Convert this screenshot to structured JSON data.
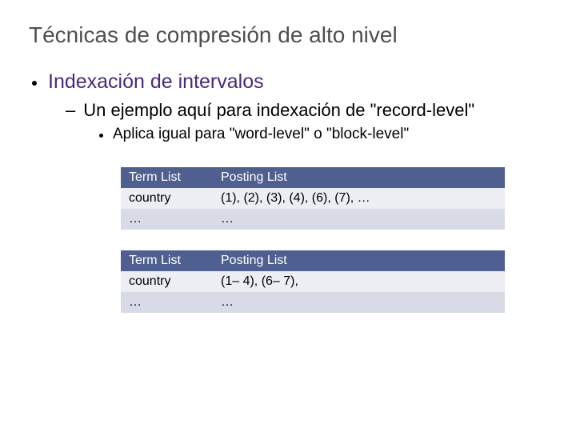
{
  "title": "Técnicas de compresión de alto nivel",
  "bullets": {
    "l1": "Indexación de intervalos",
    "l2": "Un ejemplo aquí para indexación de \"record-level\"",
    "l3": "Aplica igual para \"word-level\" o \"block-level\""
  },
  "tables": [
    {
      "header_bg": "#4f5f8f",
      "columns": [
        "Term List",
        "Posting List"
      ],
      "rows": [
        {
          "bg": "row-odd",
          "cells": [
            "country",
            "(1), (2), (3), (4), (6), (7), …"
          ]
        },
        {
          "bg": "row-even",
          "cells": [
            "…",
            "…"
          ]
        }
      ]
    },
    {
      "header_bg": "#4f5f8f",
      "columns": [
        "Term List",
        "Posting List"
      ],
      "rows": [
        {
          "bg": "row-odd",
          "cells": [
            "country",
            "(1– 4), (6– 7),"
          ]
        },
        {
          "bg": "row-even",
          "cells": [
            "…",
            "…"
          ]
        }
      ]
    }
  ],
  "colors": {
    "title": "#4f4f4f",
    "accent": "#4a2a7a",
    "header_bg": "#4f5f8f",
    "row_odd": "#eceef4",
    "row_even": "#d8dbe6"
  }
}
